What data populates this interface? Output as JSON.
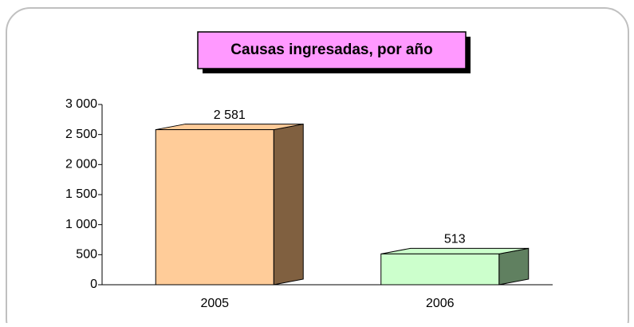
{
  "chart_data": {
    "type": "bar3d",
    "title": "Causas ingresadas, por año",
    "categories": [
      "2005",
      "2006"
    ],
    "values": [
      2581,
      513
    ],
    "value_labels": [
      "2 581",
      "513"
    ],
    "colors": [
      "#ffcc99",
      "#ccffcc"
    ],
    "side_colors": [
      "#806040",
      "#608060"
    ],
    "ylim": [
      0,
      3000
    ],
    "yticks": [
      0,
      500,
      {
        "value": 1000,
        "label": "1 000"
      },
      {
        "value": 1500,
        "label": "1 500"
      },
      {
        "value": 2000,
        "label": "2 000"
      },
      {
        "value": 2500,
        "label": "2 500"
      },
      {
        "value": 3000,
        "label": "3 000"
      }
    ],
    "title_background": "#ff99ff"
  }
}
